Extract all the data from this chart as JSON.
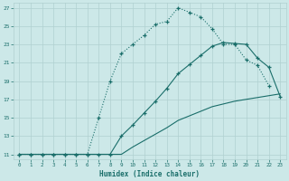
{
  "xlabel": "Humidex (Indice chaleur)",
  "bg_color": "#cce8e8",
  "grid_color": "#b0d0d0",
  "line_color": "#1a6e6a",
  "xlim": [
    -0.5,
    23.5
  ],
  "ylim": [
    10.5,
    27.5
  ],
  "xticks": [
    0,
    1,
    2,
    3,
    4,
    5,
    6,
    7,
    8,
    9,
    10,
    11,
    12,
    13,
    14,
    15,
    16,
    17,
    18,
    19,
    20,
    21,
    22,
    23
  ],
  "yticks": [
    11,
    13,
    15,
    17,
    19,
    21,
    23,
    25,
    27
  ],
  "line1_x": [
    0,
    1,
    2,
    3,
    4,
    5,
    6,
    7,
    8,
    9,
    10,
    11,
    12,
    13,
    14,
    15,
    16,
    17,
    18,
    19,
    20,
    21,
    22,
    23
  ],
  "line1_y": [
    11,
    11,
    11,
    11,
    11,
    11,
    11,
    15,
    19,
    22,
    23,
    24,
    25.2,
    25.5,
    27,
    26.5,
    26,
    24.7,
    23,
    23,
    21.3,
    20.7,
    18.5,
    null
  ],
  "line1_dotted": true,
  "line2_x": [
    0,
    1,
    2,
    3,
    4,
    5,
    6,
    7,
    8,
    9,
    10,
    11,
    12,
    13,
    14,
    15,
    16,
    17,
    18,
    19,
    20,
    21,
    22,
    23
  ],
  "line2_y": [
    11,
    11,
    11,
    11,
    11,
    11,
    11,
    11,
    11,
    13,
    14.2,
    15.5,
    16.8,
    18.2,
    19.8,
    20.8,
    21.8,
    22.8,
    23.2,
    23.1,
    23,
    21.5,
    20.5,
    17.3
  ],
  "line2_dotted": false,
  "line3_x": [
    0,
    1,
    2,
    3,
    4,
    5,
    6,
    7,
    8,
    9,
    10,
    11,
    12,
    13,
    14,
    15,
    16,
    17,
    18,
    19,
    20,
    21,
    22,
    23
  ],
  "line3_y": [
    11,
    11,
    11,
    11,
    11,
    11,
    11,
    11,
    11,
    11,
    11.8,
    12.5,
    13.2,
    13.9,
    14.7,
    15.2,
    15.7,
    16.2,
    16.5,
    16.8,
    17.0,
    17.2,
    17.4,
    17.6
  ],
  "line3_dotted": false
}
